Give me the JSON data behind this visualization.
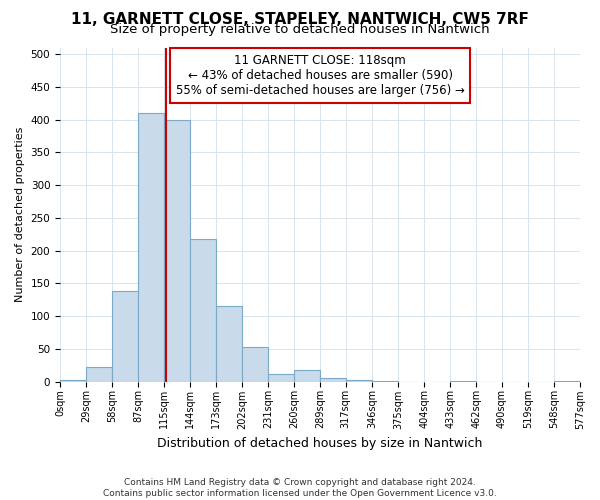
{
  "title1": "11, GARNETT CLOSE, STAPELEY, NANTWICH, CW5 7RF",
  "title2": "Size of property relative to detached houses in Nantwich",
  "xlabel": "Distribution of detached houses by size in Nantwich",
  "ylabel": "Number of detached properties",
  "footnote1": "Contains HM Land Registry data © Crown copyright and database right 2024.",
  "footnote2": "Contains public sector information licensed under the Open Government Licence v3.0.",
  "bar_edges": [
    0,
    29,
    58,
    87,
    115,
    144,
    173,
    202,
    231,
    260,
    289,
    317,
    346,
    375,
    404,
    433,
    462,
    490,
    519,
    548,
    577
  ],
  "bar_heights": [
    2,
    22,
    138,
    410,
    400,
    217,
    115,
    52,
    12,
    17,
    5,
    2,
    1,
    0,
    0,
    1,
    0,
    0,
    0,
    1
  ],
  "bar_color": "#c9daea",
  "bar_edge_color": "#7aaac8",
  "property_size": 118,
  "property_line_color": "#cc0000",
  "annotation_box_color": "#cc0000",
  "annotation_line1": "11 GARNETT CLOSE: 118sqm",
  "annotation_line2": "← 43% of detached houses are smaller (590)",
  "annotation_line3": "55% of semi-detached houses are larger (756) →",
  "ylim": [
    0,
    510
  ],
  "yticks": [
    0,
    50,
    100,
    150,
    200,
    250,
    300,
    350,
    400,
    450,
    500
  ],
  "bg_color": "#ffffff",
  "grid_color": "#d8e4ee",
  "title1_fontsize": 11,
  "title2_fontsize": 9.5,
  "xlabel_fontsize": 9,
  "ylabel_fontsize": 8,
  "footnote_fontsize": 6.5
}
